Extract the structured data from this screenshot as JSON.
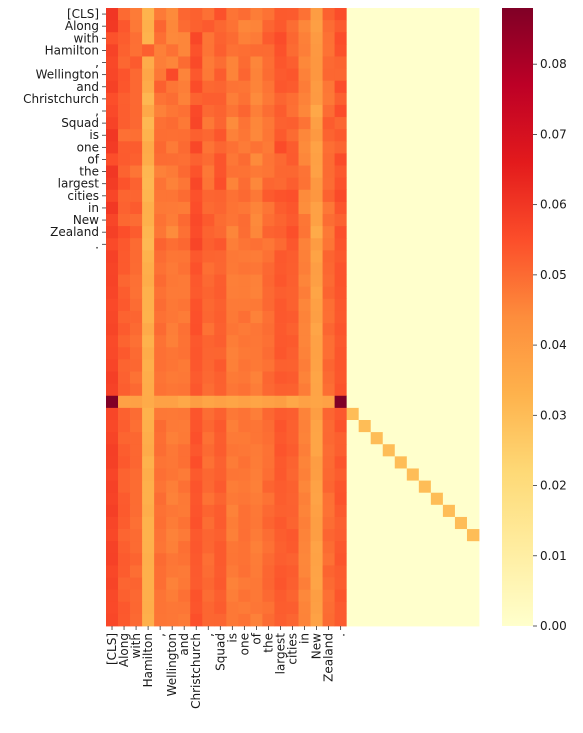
{
  "chart_data": {
    "type": "heatmap",
    "title": "",
    "xlabel": "",
    "ylabel": "",
    "y_tick_labels": [
      "[CLS]",
      "Along",
      "with",
      "Hamilton",
      ",",
      "Wellington",
      "and",
      "Christchurch",
      ",",
      "Squad",
      "is",
      "one",
      "of",
      "the",
      "largest",
      "cities",
      "in",
      "New",
      "Zealand",
      "."
    ],
    "x_tick_labels": [
      "[CLS]",
      "Along",
      "with",
      "Hamilton",
      ",",
      "Wellington",
      "and",
      "Christchurch",
      ",",
      "Squad",
      "is",
      "one",
      "of",
      "the",
      "largest",
      "cities",
      "in",
      "New",
      "Zealand",
      "."
    ],
    "n_rows": 51,
    "n_cols": 31,
    "colormap": "YlOrRd",
    "colorbar": {
      "min": 0.0,
      "max": 0.088,
      "ticks": [
        0.0,
        0.01,
        0.02,
        0.03,
        0.04,
        0.05,
        0.06,
        0.07,
        0.08
      ],
      "tick_labels": [
        "0.00",
        "0.01",
        "0.02",
        "0.03",
        "0.04",
        "0.05",
        "0.06",
        "0.07",
        "0.08"
      ]
    },
    "column_profile": [
      0.057,
      0.052,
      0.05,
      0.034,
      0.049,
      0.047,
      0.048,
      0.054,
      0.05,
      0.052,
      0.047,
      0.048,
      0.047,
      0.05,
      0.053,
      0.052,
      0.046,
      0.038,
      0.05,
      0.053,
      0.0,
      0.0,
      0.0,
      0.0,
      0.0,
      0.0,
      0.0,
      0.0,
      0.0,
      0.0,
      0.0
    ],
    "sep_row": {
      "row_index": 32,
      "values": [
        0.088,
        0.038,
        0.038,
        0.035,
        0.038,
        0.038,
        0.036,
        0.039,
        0.037,
        0.038,
        0.037,
        0.038,
        0.037,
        0.038,
        0.039,
        0.036,
        0.038,
        0.037,
        0.038,
        0.088,
        0.0,
        0.0,
        0.0,
        0.0,
        0.0,
        0.0,
        0.0,
        0.0,
        0.0,
        0.0,
        0.0
      ]
    },
    "diagonal": {
      "start_row": 33,
      "start_col": 20,
      "length": 11,
      "value": 0.03,
      "cells_left_of_diagonal_from_col_20": 0.002
    }
  }
}
